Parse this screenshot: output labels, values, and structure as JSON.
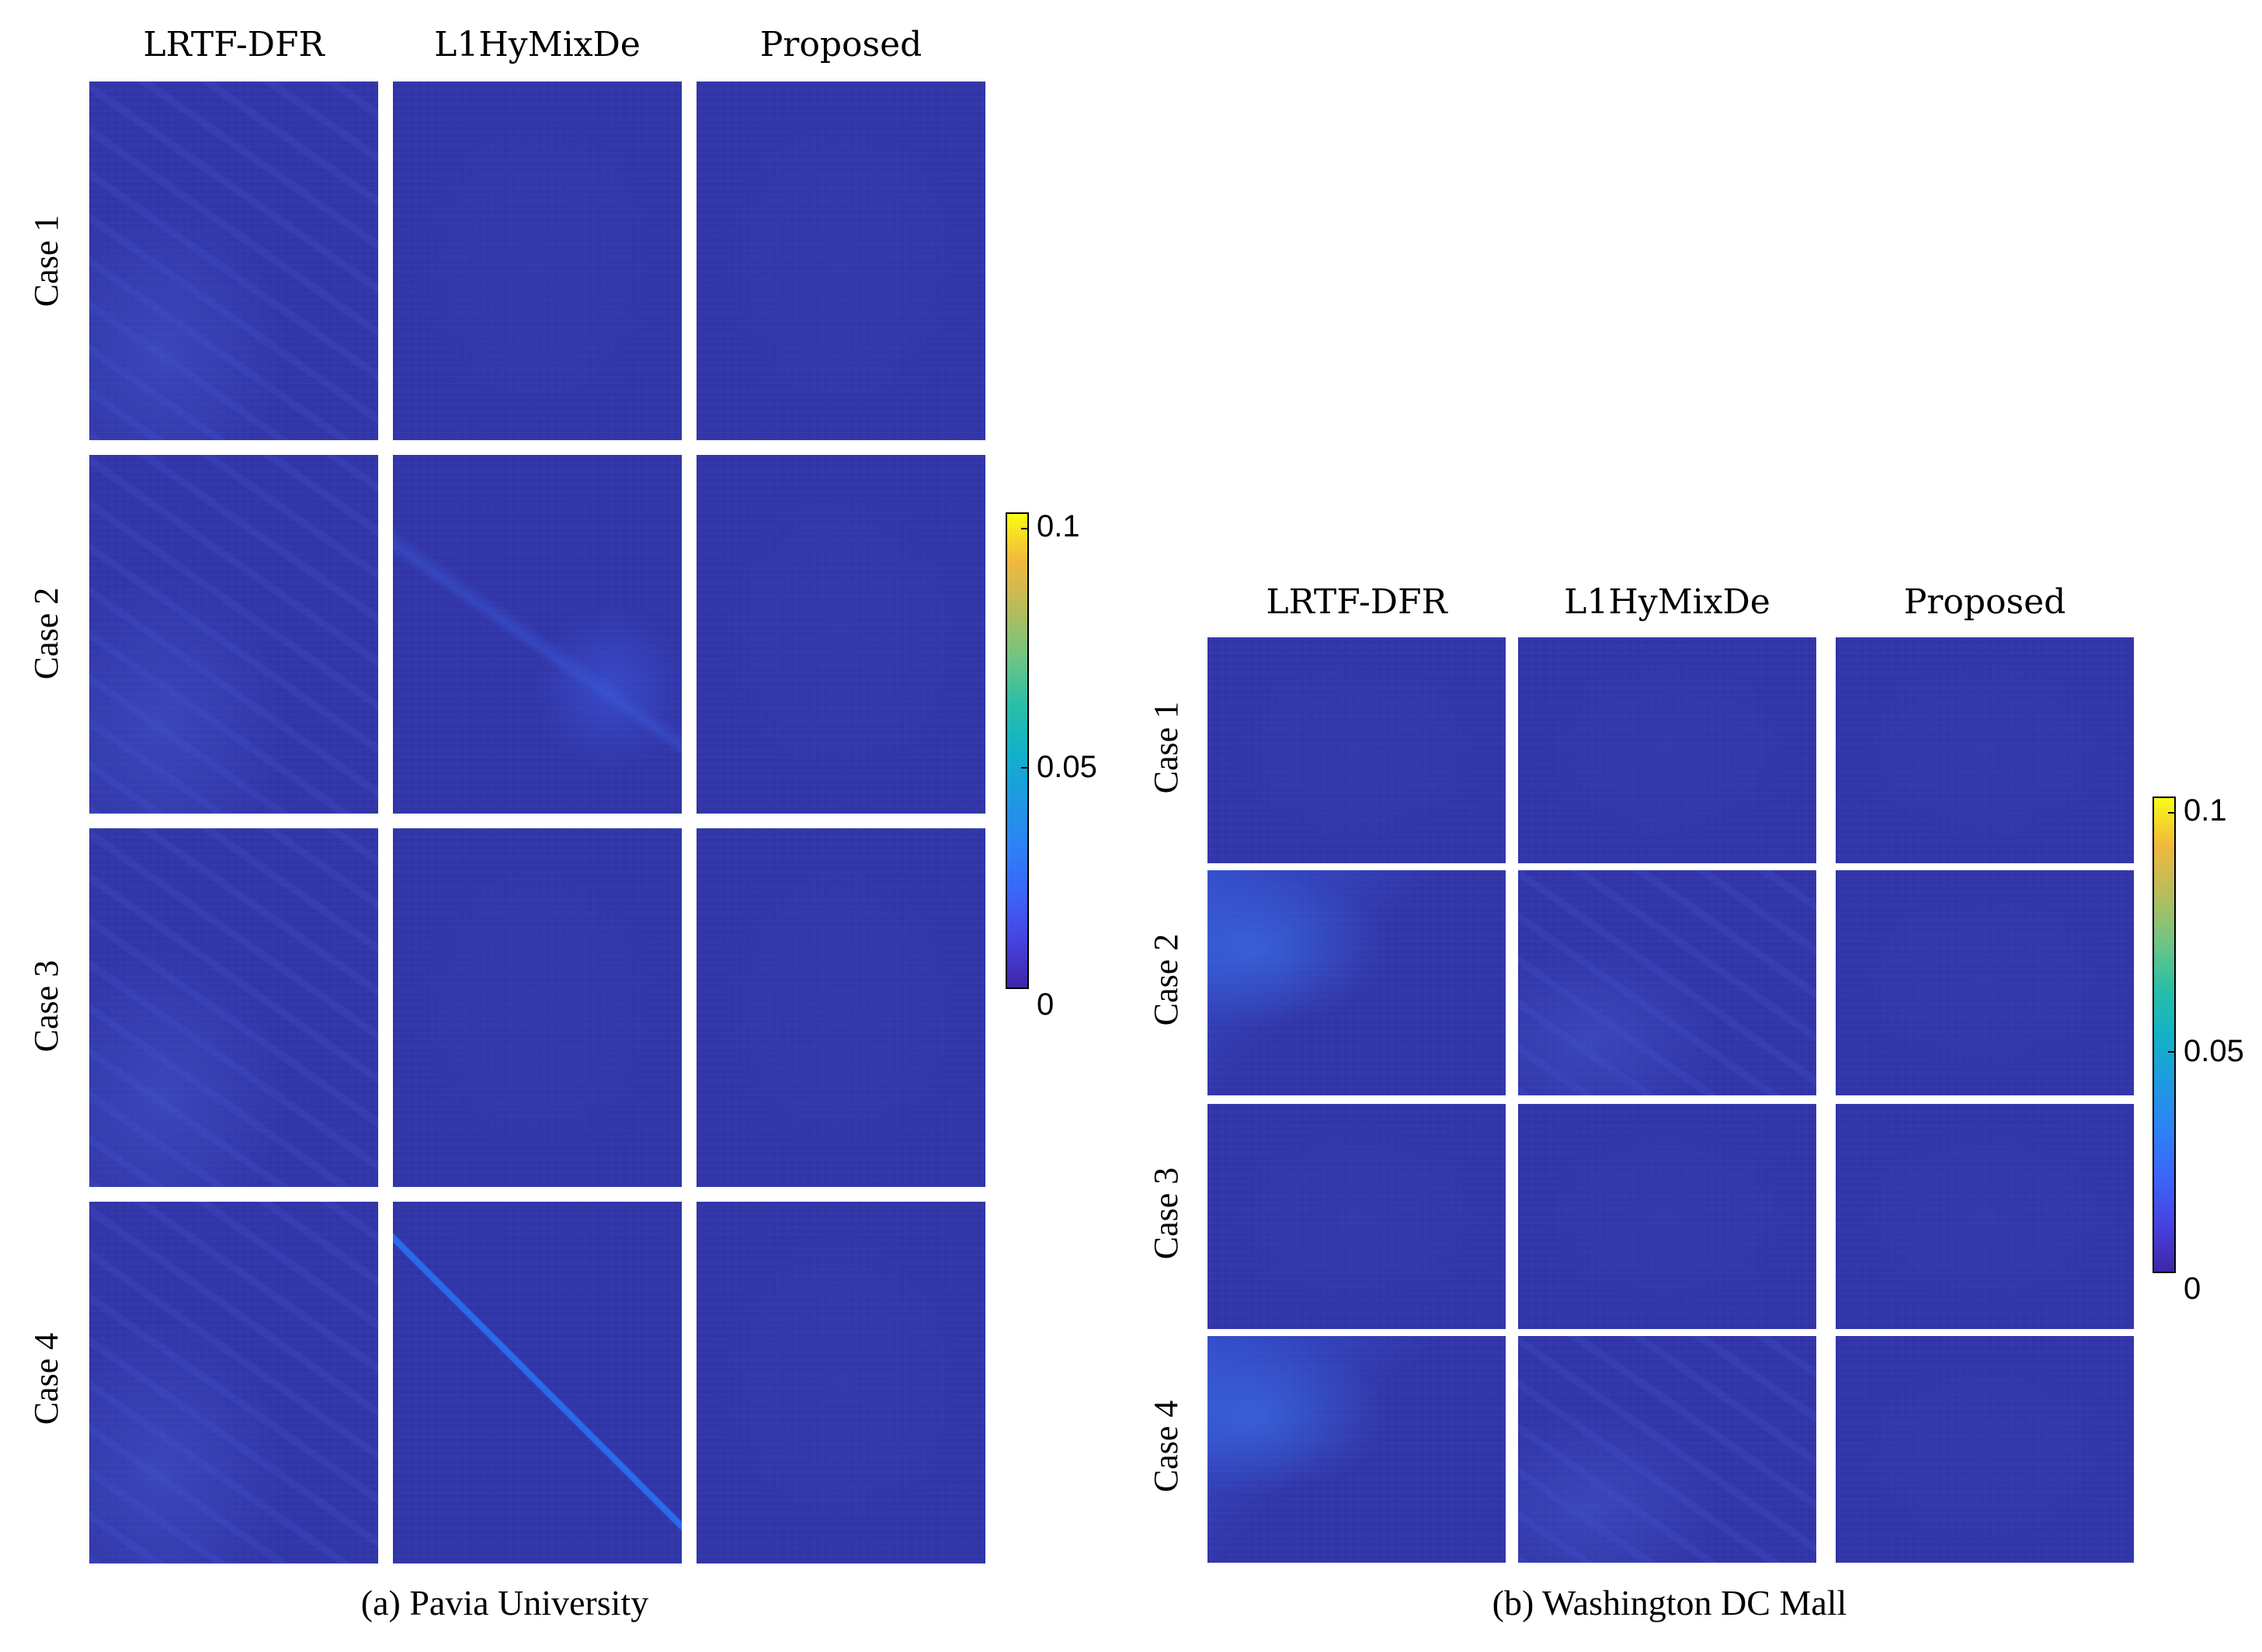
{
  "panel_a": {
    "columns": [
      "LRTF-DFR",
      "L1HyMixDe",
      "Proposed"
    ],
    "rows": [
      "Case 1",
      "Case 2",
      "Case 3",
      "Case 4"
    ],
    "colorbar_ticks": [
      "0.1",
      "0.05",
      "0"
    ],
    "caption": "(a) Pavia University"
  },
  "panel_b": {
    "columns": [
      "LRTF-DFR",
      "L1HyMixDe",
      "Proposed"
    ],
    "rows": [
      "Case 1",
      "Case 2",
      "Case 3",
      "Case 4"
    ],
    "colorbar_ticks": [
      "0.1",
      "0.05",
      "0"
    ],
    "caption": "(b) Washington DC Mall"
  },
  "colormap": {
    "low": "#3e26a8",
    "mid": "#12b2c8",
    "high": "#f9fb15",
    "range": [
      0,
      0.1
    ]
  }
}
